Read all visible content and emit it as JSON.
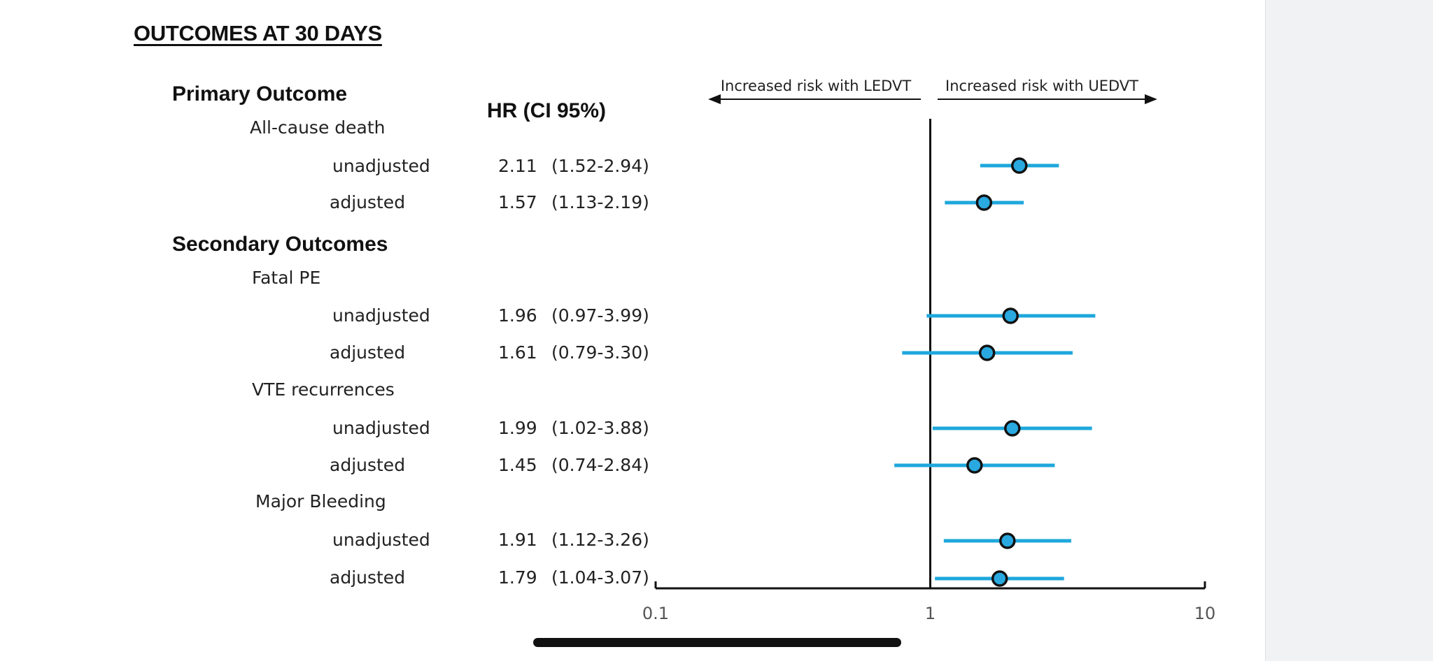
{
  "title": "OUTCOMES AT 30 DAYS",
  "sections": {
    "primary": "Primary Outcome",
    "secondary": "Secondary Outcomes"
  },
  "hr_header": "HR   (CI 95%)",
  "chart_data": {
    "type": "scatter",
    "subtype": "forest-plot",
    "x_scale": "log",
    "xlim": [
      0.1,
      10
    ],
    "x_ticks": [
      "0.1",
      "1",
      "10"
    ],
    "reference_line": 1,
    "annotations": {
      "left": "Increased risk with LEDVT",
      "right": "Increased risk with UEDVT"
    },
    "colors": {
      "ci_line": "#1ea7dc",
      "marker_fill": "#29a9e0",
      "marker_stroke": "#111111",
      "axis": "#111111"
    },
    "outcomes": [
      {
        "name": "All-cause death",
        "group": "primary",
        "rows": [
          {
            "label": "unadjusted",
            "hr": 2.11,
            "lo": 1.52,
            "hi": 2.94,
            "hr_text": "2.11",
            "ci_text": "(1.52-2.94)"
          },
          {
            "label": "adjusted",
            "hr": 1.57,
            "lo": 1.13,
            "hi": 2.19,
            "hr_text": "1.57",
            "ci_text": "(1.13-2.19)"
          }
        ]
      },
      {
        "name": "Fatal PE",
        "group": "secondary",
        "rows": [
          {
            "label": "unadjusted",
            "hr": 1.96,
            "lo": 0.97,
            "hi": 3.99,
            "hr_text": "1.96",
            "ci_text": "(0.97-3.99)"
          },
          {
            "label": "adjusted",
            "hr": 1.61,
            "lo": 0.79,
            "hi": 3.3,
            "hr_text": "1.61",
            "ci_text": "(0.79-3.30)"
          }
        ]
      },
      {
        "name": "VTE recurrences",
        "group": "secondary",
        "rows": [
          {
            "label": "unadjusted",
            "hr": 1.99,
            "lo": 1.02,
            "hi": 3.88,
            "hr_text": "1.99",
            "ci_text": "(1.02-3.88)"
          },
          {
            "label": "adjusted",
            "hr": 1.45,
            "lo": 0.74,
            "hi": 2.84,
            "hr_text": "1.45",
            "ci_text": "(0.74-2.84)"
          }
        ]
      },
      {
        "name": "Major Bleeding",
        "group": "secondary",
        "rows": [
          {
            "label": "unadjusted",
            "hr": 1.91,
            "lo": 1.12,
            "hi": 3.26,
            "hr_text": "1.91",
            "ci_text": "(1.12-3.26)"
          },
          {
            "label": "adjusted",
            "hr": 1.79,
            "lo": 1.04,
            "hi": 3.07,
            "hr_text": "1.79",
            "ci_text": "(1.04-3.07)"
          }
        ]
      }
    ]
  }
}
